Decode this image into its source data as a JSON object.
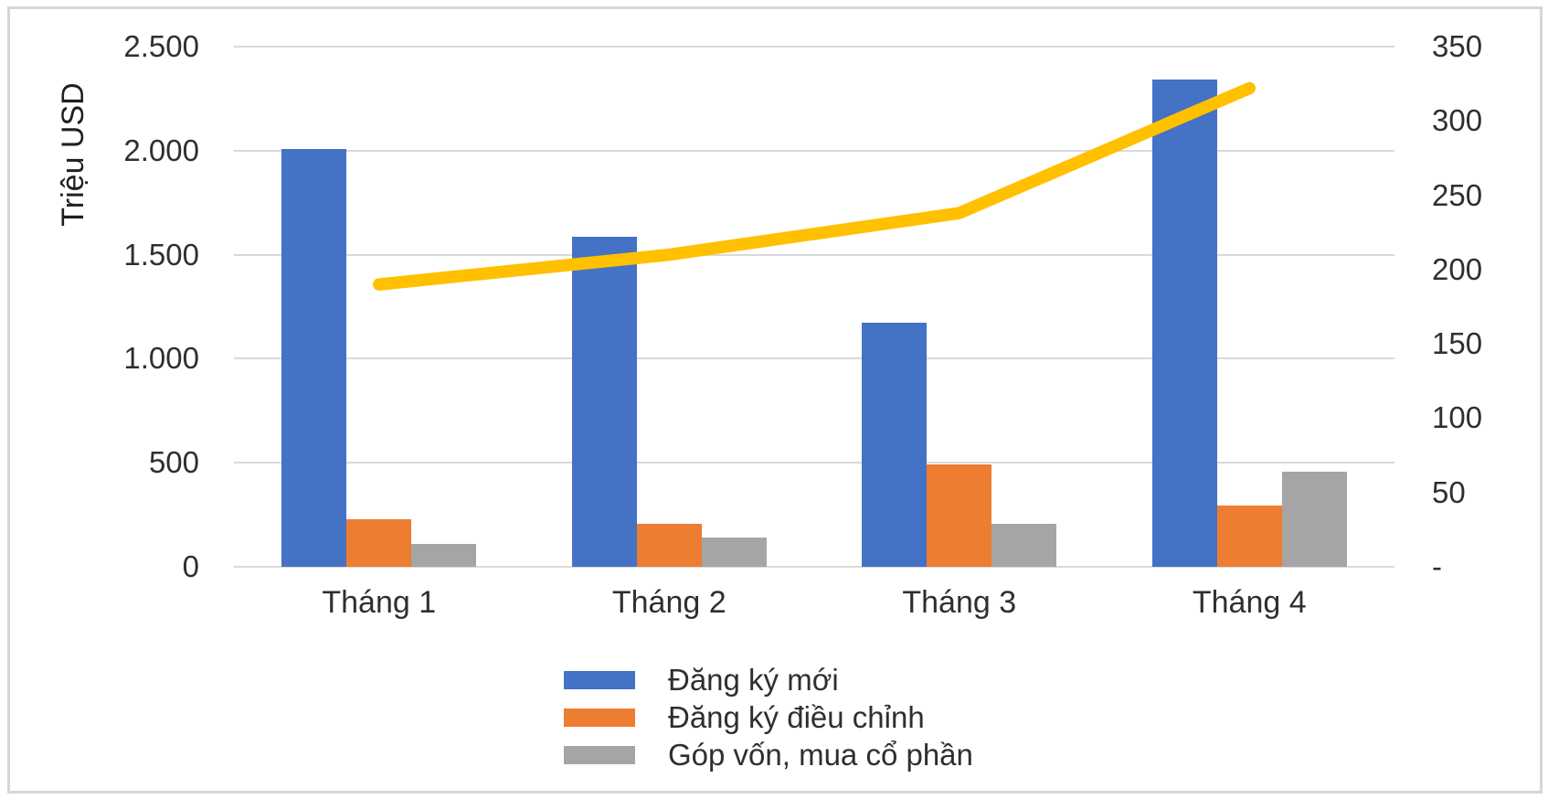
{
  "chart_data": {
    "type": "bar",
    "subtype": "combo-bar-line-dual-axis",
    "categories": [
      "Tháng 1",
      "Tháng 2",
      "Tháng 3",
      "Tháng 4"
    ],
    "series": [
      {
        "name": "Đăng ký mới",
        "plot": "bar",
        "axis": "left",
        "color": "#4472C4",
        "values": [
          2010,
          1585,
          1175,
          2340
        ]
      },
      {
        "name": "Đăng ký điều chỉnh",
        "plot": "bar",
        "axis": "left",
        "color": "#ED7D31",
        "values": [
          230,
          208,
          490,
          295
        ]
      },
      {
        "name": "Góp vốn, mua cổ phần",
        "plot": "bar",
        "axis": "left",
        "color": "#A5A5A5",
        "values": [
          112,
          140,
          205,
          455
        ]
      },
      {
        "name": "",
        "plot": "line",
        "axis": "right",
        "color": "#FFC000",
        "values": [
          190,
          210,
          238,
          322
        ]
      }
    ],
    "left_axis": {
      "title": "Triệu USD",
      "min": 0,
      "max": 2500,
      "step": 500,
      "tick_labels": [
        "0",
        "500",
        "1.000",
        "1.500",
        "2.000",
        "2.500"
      ]
    },
    "right_axis": {
      "title": "",
      "min": 0,
      "max": 350,
      "step": 50,
      "tick_labels": [
        "-",
        "50",
        "100",
        "150",
        "200",
        "250",
        "300",
        "350"
      ]
    },
    "legend": {
      "position": "bottom",
      "entries": [
        "Đăng ký mới",
        "Đăng ký điều chỉnh",
        "Góp vốn, mua cổ phần"
      ]
    },
    "grid": true,
    "xlabel": "",
    "ylabel": "Triệu USD",
    "colors": {
      "gridline": "#d9d9d9",
      "frame_border": "#d6d6d6",
      "text": "#2f2f2f",
      "bar_blue": "#4472C4",
      "bar_orange": "#ED7D31",
      "bar_gray": "#A5A5A5",
      "line_yellow": "#FFC000"
    }
  }
}
